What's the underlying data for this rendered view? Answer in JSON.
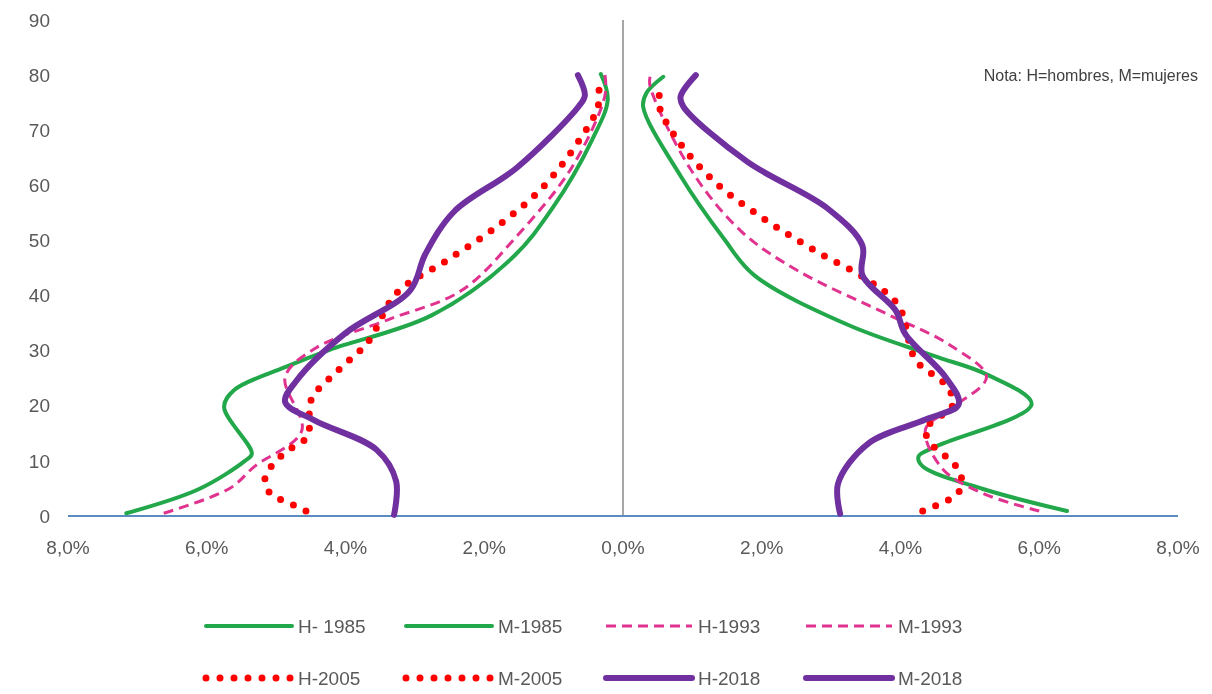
{
  "chart_data": {
    "type": "line",
    "xlim": [
      -8,
      8
    ],
    "ylim": [
      0,
      90
    ],
    "xticks": [
      {
        "value": -8,
        "label": "8,0%"
      },
      {
        "value": -6,
        "label": "6,0%"
      },
      {
        "value": -4,
        "label": "4,0%"
      },
      {
        "value": -2,
        "label": "2,0%"
      },
      {
        "value": 0,
        "label": "0,0%"
      },
      {
        "value": 2,
        "label": "2,0%"
      },
      {
        "value": 4,
        "label": "4,0%"
      },
      {
        "value": 6,
        "label": "6,0%"
      },
      {
        "value": 8,
        "label": "8,0%"
      }
    ],
    "yticks": [
      0,
      10,
      20,
      30,
      40,
      50,
      60,
      70,
      80,
      90
    ],
    "legend": "bottom",
    "grid": false,
    "ref_lines": [
      {
        "axis": "x",
        "value": 0,
        "color": "#a6a6a6"
      }
    ],
    "annotations": [
      "Nota: H=hombres, M=mujeres"
    ],
    "series": [
      {
        "name": "H- 1985",
        "color": "#22a84a",
        "line_style": "solid",
        "x": [
          -7.16,
          -6.11,
          -5.45,
          -5.35,
          -5.75,
          -5.6,
          -4.87,
          -4.22,
          -2.76,
          -1.6,
          -1.02,
          -0.44,
          -0.22,
          -0.32
        ],
        "values": [
          0.5,
          4.9,
          10,
          11.3,
          19.8,
          22.9,
          27,
          30.2,
          36.4,
          46.8,
          55.8,
          68.4,
          75.6,
          80.2
        ]
      },
      {
        "name": "M-1985",
        "color": "#22a84a",
        "line_style": "solid",
        "x": [
          6.4,
          5.19,
          4.32,
          4.26,
          4.51,
          5.89,
          5.24,
          4.47,
          3.24,
          1.89,
          1.45,
          0.83,
          0.29,
          0.34,
          0.58
        ],
        "values": [
          0.9,
          4.9,
          9,
          10.8,
          12.6,
          20.3,
          25.7,
          29.1,
          34.7,
          43.7,
          50.4,
          61.7,
          74.3,
          76.8,
          79.7
        ]
      },
      {
        "name": "H-1993",
        "color": "#e0338f",
        "line_style": "dashed",
        "x": [
          -6.62,
          -5.67,
          -5.31,
          -4.63,
          -4.87,
          -4.44,
          -3.39,
          -2.33,
          -1.53,
          -0.74,
          -0.26,
          -0.26
        ],
        "values": [
          0.5,
          5,
          9,
          15.5,
          25.2,
          30.4,
          35.6,
          40.9,
          50.8,
          63.2,
          76.3,
          80
        ]
      },
      {
        "name": "M-1993",
        "color": "#e0338f",
        "line_style": "dashed",
        "x": [
          6,
          5.19,
          4.61,
          4.36,
          4.7,
          5.24,
          4.7,
          3.83,
          2.52,
          1.7,
          0.97,
          0.39,
          0.39
        ],
        "values": [
          0.9,
          4.1,
          8.5,
          15.7,
          19.3,
          25.2,
          31.1,
          36.5,
          44.5,
          51.7,
          63,
          78,
          79.7
        ]
      },
      {
        "name": "H-2005",
        "color": "#ff0000",
        "line_style": "dotted",
        "x": [
          -4.57,
          -4.83,
          -5.08,
          -5.16,
          -5,
          -4.79,
          -4.55,
          -4.49,
          -4.1,
          -3.68,
          -3.26,
          -2.55,
          -1.82,
          -1.16,
          -0.64,
          -0.36,
          -0.35
        ],
        "values": [
          0.9,
          2.5,
          4,
          7,
          10,
          12.2,
          14.4,
          21.2,
          26.5,
          31.5,
          40.5,
          46.3,
          52.5,
          59.6,
          68,
          74.3,
          78
        ]
      },
      {
        "name": "M-2005",
        "color": "#ff0000",
        "line_style": "dotted",
        "x": [
          4.32,
          4.58,
          4.83,
          4.87,
          4.7,
          4.48,
          4.36,
          4.76,
          4.65,
          4.22,
          3.97,
          3.53,
          2.79,
          2.07,
          1.35,
          0.8,
          0.52,
          0.55
        ],
        "values": [
          0.9,
          2.3,
          4.1,
          7.6,
          10.3,
          12.6,
          15.7,
          20.3,
          23.8,
          28.3,
          38.2,
          42.8,
          48,
          53.6,
          60.3,
          68,
          74.5,
          78
        ]
      },
      {
        "name": "H-2018",
        "color": "#7030a0",
        "line_style": "solid",
        "x": [
          -3.3,
          -3.27,
          -3.55,
          -4.44,
          -4.87,
          -4.71,
          -4.01,
          -3.07,
          -2.85,
          -2.43,
          -1.53,
          -0.64,
          -0.55,
          -0.65
        ],
        "values": [
          0.2,
          6.3,
          12,
          17.3,
          20.7,
          24.5,
          33.1,
          40.9,
          47.5,
          55.3,
          63.2,
          74.3,
          76.3,
          80
        ]
      },
      {
        "name": "M-2018",
        "color": "#7030a0",
        "line_style": "solid",
        "x": [
          3.13,
          3.1,
          3.53,
          4.36,
          4.84,
          4.65,
          4.07,
          3.93,
          3.45,
          3.45,
          2.95,
          1.79,
          0.87,
          0.83,
          1.05
        ],
        "values": [
          0.4,
          5.9,
          13.1,
          17.5,
          20.3,
          25.2,
          33,
          37.3,
          43.7,
          49.1,
          55.8,
          64.3,
          74.3,
          76.1,
          80
        ]
      }
    ]
  }
}
